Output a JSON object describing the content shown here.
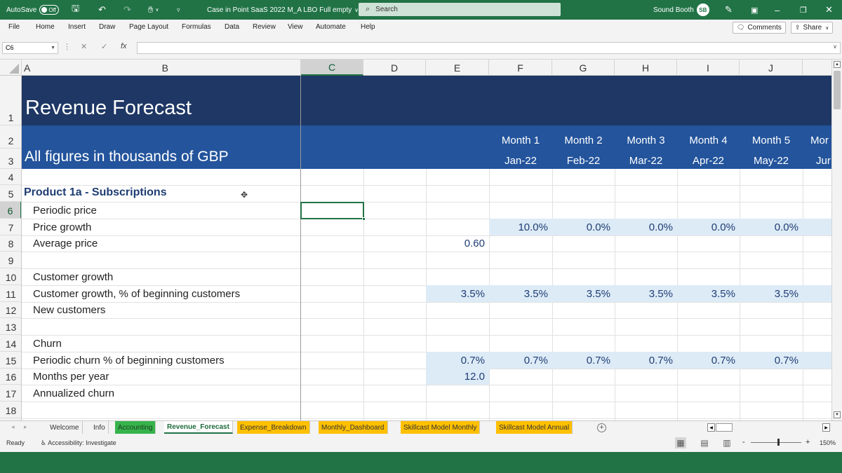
{
  "titlebar": {
    "autosave_label": "AutoSave",
    "autosave_state": "Off",
    "doc_title": "Case in Point SaaS 2022 M_A LBO Full empty",
    "search_placeholder": "Search",
    "user_name": "Sound Booth",
    "user_initials": "SB"
  },
  "menu": {
    "items": [
      "File",
      "Home",
      "Insert",
      "Draw",
      "Page Layout",
      "Formulas",
      "Data",
      "Review",
      "View",
      "Automate",
      "Help"
    ],
    "comments_label": "Comments",
    "share_label": "Share"
  },
  "formula_bar": {
    "name_box": "C6",
    "fx_label": "fx",
    "formula": ""
  },
  "columns": [
    "A",
    "B",
    "C",
    "D",
    "E",
    "F",
    "G",
    "H",
    "I",
    "J"
  ],
  "selected_column": "C",
  "rows": [
    "1",
    "2",
    "3",
    "4",
    "5",
    "6",
    "7",
    "8",
    "9",
    "10",
    "11",
    "12",
    "13",
    "14",
    "15",
    "16",
    "17",
    "18"
  ],
  "selected_row": "6",
  "sheet": {
    "title": "Revenue Forecast",
    "subtitle": "All figures in thousands of GBP",
    "months": [
      "Month 1",
      "Month 2",
      "Month 3",
      "Month 4",
      "Month 5",
      "Mor"
    ],
    "dates": [
      "Jan-22",
      "Feb-22",
      "Mar-22",
      "Apr-22",
      "May-22",
      "Jur"
    ],
    "section": "Product 1a - Subscriptions",
    "labels": {
      "r6": "Periodic price",
      "r7": "Price growth",
      "r8": "Average price",
      "r10": "Customer growth",
      "r11": "Customer growth, % of beginning customers",
      "r12": "New customers",
      "r14": "Churn",
      "r15": "Periodic churn % of beginning customers",
      "r16": "Months per year",
      "r17": "Annualized churn"
    },
    "price_growth": [
      "10.0%",
      "0.0%",
      "0.0%",
      "0.0%",
      "0.0%"
    ],
    "average_price_e": "0.60",
    "customer_growth_e": "3.5%",
    "customer_growth": [
      "3.5%",
      "3.5%",
      "3.5%",
      "3.5%",
      "3.5%"
    ],
    "churn_e": "0.7%",
    "churn": [
      "0.7%",
      "0.7%",
      "0.7%",
      "0.7%",
      "0.7%"
    ],
    "months_per_year_e": "12.0"
  },
  "tabs": [
    {
      "label": "Welcome",
      "style": "plain"
    },
    {
      "label": "Info",
      "style": "plain"
    },
    {
      "label": "Accounting",
      "style": "green"
    },
    {
      "label": "Revenue_Forecast",
      "style": "active"
    },
    {
      "label": "Expense_Breakdown",
      "style": "orange"
    },
    {
      "label": "Monthly_Dashboard",
      "style": "orange"
    },
    {
      "label": "Skillcast Model Monthly",
      "style": "orange"
    },
    {
      "label": "Skillcast Model Annual",
      "style": "orange"
    }
  ],
  "status": {
    "ready": "Ready",
    "accessibility": "Accessibility: Investigate",
    "zoom": "150%",
    "zoom_minus": "-",
    "zoom_plus": "+"
  },
  "colors": {
    "excel_green": "#217346",
    "header_dark": "#1e3765",
    "header_mid": "#23549c",
    "input_fill": "#ddebf7"
  }
}
